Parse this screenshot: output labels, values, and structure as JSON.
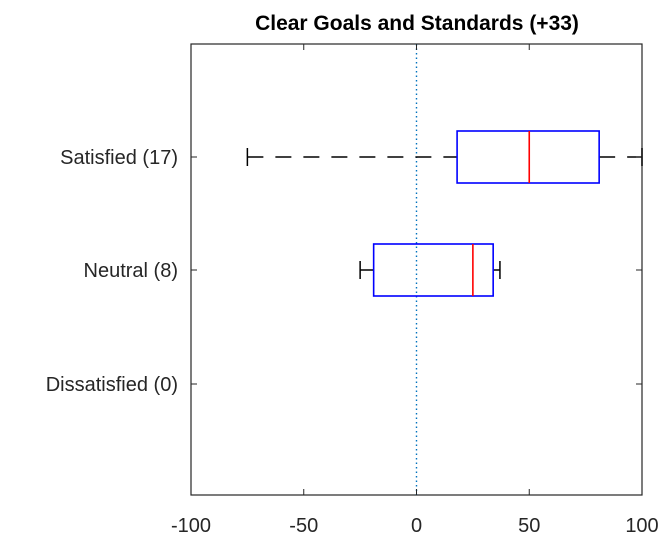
{
  "chart_data": {
    "type": "box",
    "orientation": "horizontal",
    "title": "Clear Goals and Standards (+33)",
    "xlabel": "",
    "ylabel": "",
    "xlim": [
      -100,
      100
    ],
    "x_ticks": [
      -100,
      -50,
      0,
      50,
      100
    ],
    "x_tick_labels": [
      "-100",
      "-50",
      "0",
      "50",
      "100"
    ],
    "categories": [
      "Satisfied (17)",
      "Neutral (8)",
      "Dissatisfied (0)"
    ],
    "boxes": [
      {
        "category": "Satisfied (17)",
        "whisker_low": -75,
        "q1": 18,
        "median": 50,
        "q3": 81,
        "whisker_high": 100
      },
      {
        "category": "Neutral (8)",
        "whisker_low": -25,
        "q1": -19,
        "median": 25,
        "q3": 34,
        "whisker_high": 37
      },
      {
        "category": "Dissatisfied (0)",
        "whisker_low": null,
        "q1": null,
        "median": null,
        "q3": null,
        "whisker_high": null
      }
    ],
    "reference_line": {
      "x": 0,
      "style": "dotted"
    },
    "grid": false,
    "colors": {
      "box": "#0000ff",
      "median": "#ff0000",
      "whisker": "#000000",
      "reference_line": "#0072bd",
      "axis": "#262626"
    }
  }
}
